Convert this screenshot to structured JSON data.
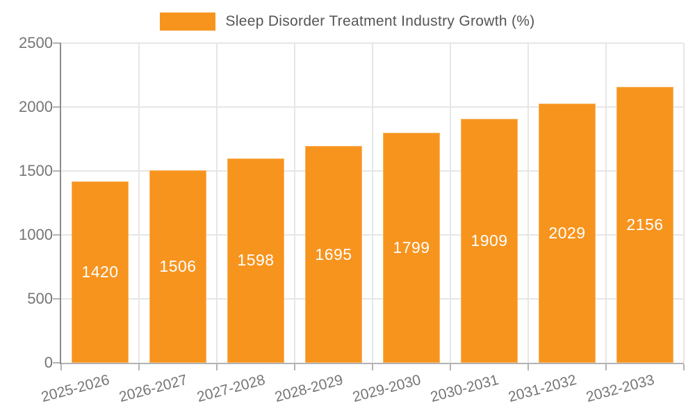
{
  "legend": {
    "entries": [
      {
        "label": "Sleep Disorder Treatment Industry Growth (%)",
        "color": "#F7941E"
      }
    ]
  },
  "chart_data": {
    "type": "bar",
    "title": "Sleep Disorder Treatment Industry Growth (%)",
    "categories": [
      "2025-2026",
      "2026-2027",
      "2027-2028",
      "2028-2029",
      "2029-2030",
      "2030-2031",
      "2031-2032",
      "2032-2033"
    ],
    "series": [
      {
        "name": "Sleep Disorder Treatment Industry Growth (%)",
        "color": "#F7941E",
        "values": [
          1420,
          1506,
          1598,
          1695,
          1799,
          1909,
          2029,
          2156
        ]
      }
    ],
    "value_labels_shown": true,
    "value_label_color": "#FFFFFF",
    "xlabel": "",
    "ylabel": "",
    "ylim": [
      0,
      2500
    ],
    "yticks": [
      0,
      500,
      1000,
      1500,
      2000,
      2500
    ],
    "grid": true,
    "grid_color": "#E6E6E6",
    "axis_line_color": "#8C8C8C",
    "baseline_color": "#B3B3B3",
    "tick_mark_color": "#B3B3B3",
    "tick_label_color": "#757575",
    "legend_text_color": "#555555",
    "legend_position": "top",
    "x_tick_rotation_deg": -15,
    "background_color": "#FFFFFF"
  }
}
